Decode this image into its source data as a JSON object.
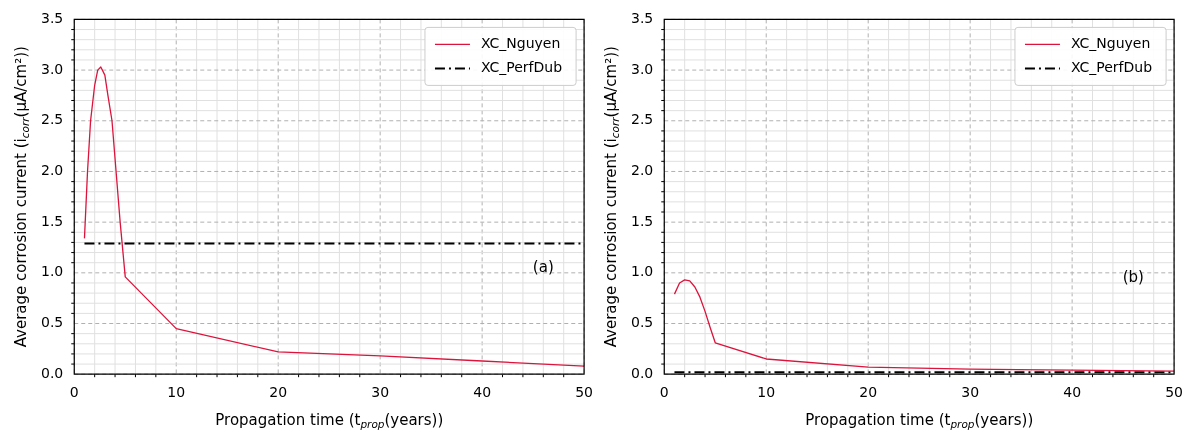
{
  "chart_data": [
    {
      "type": "line",
      "xlabel": "Propagation time (t$_{prop}$(years))",
      "ylabel": "Average corrosion current (i$_{corr}$(μA/cm²))",
      "xlim": [
        0,
        50
      ],
      "ylim": [
        0,
        3.5
      ],
      "xticks": [
        0,
        10,
        20,
        30,
        40,
        50
      ],
      "yticks": [
        {
          "value": 0,
          "label": "0.0"
        },
        {
          "value": 0.5,
          "label": "0.5"
        },
        {
          "value": 1,
          "label": "1.0"
        },
        {
          "value": 1.5,
          "label": "1.5"
        },
        {
          "value": 2,
          "label": "2.0"
        },
        {
          "value": 2.5,
          "label": "2.5"
        },
        {
          "value": 3,
          "label": "3.0"
        },
        {
          "value": 3.5,
          "label": "3.5"
        }
      ],
      "grid": true,
      "legend": "top right",
      "marker": "none",
      "annotations": [
        "(a)"
      ],
      "series": [
        {
          "name": "XC_Nguyen",
          "color": "#dc143c",
          "line_style": "solid",
          "x": [
            1,
            1.3,
            1.6,
            2,
            2.3,
            2.6,
            3,
            3.3,
            3.7,
            4.1,
            4.5,
            5,
            10,
            20,
            30,
            40,
            50
          ],
          "values": [
            1.34,
            2.0,
            2.5,
            2.85,
            3.0,
            3.03,
            2.95,
            2.75,
            2.5,
            2.0,
            1.5,
            0.96,
            0.45,
            0.22,
            0.18,
            0.13,
            0.08
          ]
        },
        {
          "name": "XC_PerfDub",
          "color": "#000000",
          "line_style": "dashed",
          "x": [
            1,
            50
          ],
          "values": [
            1.29,
            1.29
          ]
        }
      ]
    },
    {
      "type": "line",
      "xlabel": "Propagation time (t$_{prop}$(years))",
      "ylabel": "Average corrosion current (i$_{corr}$(μA/cm²))",
      "xlim": [
        0,
        50
      ],
      "ylim": [
        0,
        3.5
      ],
      "xticks": [
        0,
        10,
        20,
        30,
        40,
        50
      ],
      "yticks": [
        {
          "value": 0,
          "label": "0.0"
        },
        {
          "value": 0.5,
          "label": "0.5"
        },
        {
          "value": 1,
          "label": "1.0"
        },
        {
          "value": 1.5,
          "label": "1.5"
        },
        {
          "value": 2,
          "label": "2.0"
        },
        {
          "value": 2.5,
          "label": "2.5"
        },
        {
          "value": 3,
          "label": "3.0"
        },
        {
          "value": 3.5,
          "label": "3.5"
        }
      ],
      "grid": true,
      "legend": "top right",
      "marker": "none",
      "annotations": [
        "(b)"
      ],
      "series": [
        {
          "name": "XC_Nguyen",
          "color": "#dc143c",
          "line_style": "solid",
          "x": [
            1,
            1.5,
            2,
            2.5,
            3,
            3.5,
            4,
            4.5,
            5,
            10,
            20,
            30,
            40,
            50
          ],
          "values": [
            0.79,
            0.9,
            0.93,
            0.92,
            0.86,
            0.76,
            0.62,
            0.46,
            0.31,
            0.15,
            0.07,
            0.05,
            0.04,
            0.03
          ]
        },
        {
          "name": "XC_PerfDub",
          "color": "#000000",
          "line_style": "dashed",
          "x": [
            1,
            50
          ],
          "values": [
            0.02,
            0.02
          ]
        }
      ]
    }
  ]
}
